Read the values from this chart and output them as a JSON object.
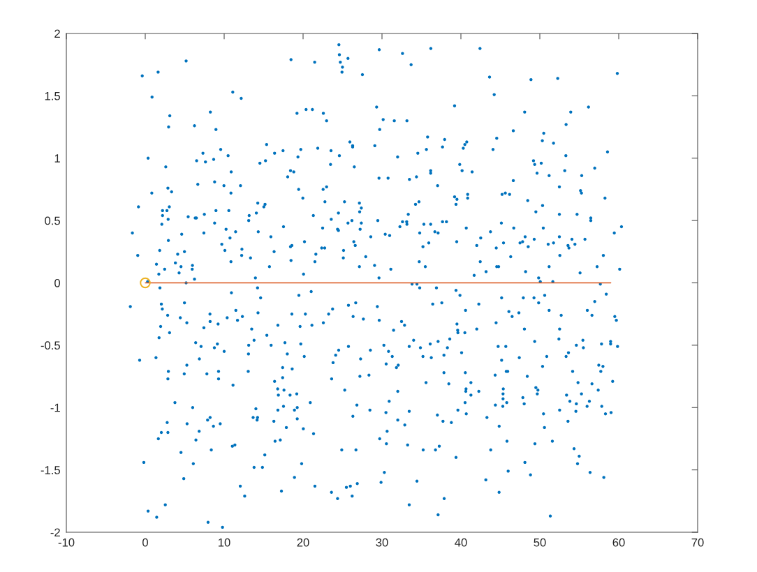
{
  "chart_data": {
    "type": "scatter",
    "xlim": [
      -10,
      70
    ],
    "ylim": [
      -2,
      2
    ],
    "xticks": [
      -10,
      0,
      10,
      20,
      30,
      40,
      50,
      60,
      70
    ],
    "yticks": [
      -2,
      -1.5,
      -1,
      -0.5,
      0,
      0.5,
      1,
      1.5,
      2
    ],
    "series": [
      {
        "color": "#0072bd",
        "x": [
          5.18,
          -0.38,
          1.63,
          0.86,
          11.09,
          12.16,
          3.11,
          2.96,
          6.24,
          8.25,
          8.96,
          15.38,
          16.39,
          9.56,
          10.5,
          7.31,
          6.51,
          7.63,
          8.67,
          0.36,
          2.6,
          14.53,
          15.24,
          10.89,
          6.66,
          8.79,
          9.97,
          12.07,
          10.86,
          2.87,
          3.34,
          0.83,
          -0.86,
          2.19,
          2.75,
          3.05,
          2.19,
          2.9,
          2.1,
          5.44,
          6.33,
          6.48,
          7.49,
          8.96,
          10.59,
          8.79,
          10.24,
          11.45,
          10.74,
          14.26,
          15.18,
          15.03,
          13.17,
          14.08,
          13.11,
          14.32,
          15.92,
          -1.63,
          4.62,
          7.43,
          2.93,
          9.7,
          10.09,
          12.25,
          12.22,
          13.34,
          16.33,
          1.83,
          -0.95,
          4.11,
          4.97,
          1.42,
          2.46,
          3.82,
          4.53,
          5.98,
          5.95,
          1.72,
          4.29,
          10.86,
          15.74,
          5.18,
          6.24,
          13.96,
          0.3,
          1.86,
          -1.89,
          2.04,
          2.16,
          2.84,
          4.44,
          4.97,
          5.27,
          1.95,
          3.08,
          1.75,
          7.43,
          8.2,
          8.22,
          9.23,
          10.38,
          10.92,
          11.48,
          11.69,
          12.31,
          14.23,
          14.62,
          14.29,
          13.49,
          13.79,
          13.11,
          15.41,
          15.95,
          13.08,
          13.05,
          6.39,
          7.07,
          9.14,
          8.76,
          10.0,
          6.86,
          5.27,
          4.94,
          7.81,
          9.29,
          9.29,
          11.12,
          -0.71,
          1.36,
          2.93,
          2.87,
          16.39,
          3.76,
          6.01,
          14.02,
          13.67,
          14.23,
          14.17,
          16.3,
          7.9,
          8.22,
          8.64,
          9.5,
          2.78,
          5.3,
          2.04,
          2.87,
          1.66,
          6.83,
          6.42,
          8.37,
          11.04,
          11.36,
          16.45,
          4.53,
          15.15,
          -0.18,
          6.09,
          13.79,
          14.85,
          4.88,
          12.04,
          12.6,
          2.54,
          0.36,
          1.45,
          7.96,
          9.79,
          24.54,
          18.47,
          21.47,
          24.6,
          24.72,
          25.69,
          24.99,
          24.93,
          27.52,
          29.65,
          32.6,
          33.69,
          36.19,
          42.42,
          19.23,
          20.38,
          21.18,
          22.57,
          22.98,
          29.32,
          30.15,
          31.56,
          33.16,
          29.71,
          39.2,
          35.78,
          37.94,
          40.3,
          40.5,
          40.74,
          37.67,
          35.63,
          34.54,
          31.98,
          29.09,
          25.93,
          26.28,
          26.28,
          24.6,
          23.54,
          21.86,
          19.71,
          19.35,
          17.46,
          23.48,
          26.49,
          18.41,
          18.82,
          18.05,
          29.62,
          30.77,
          33.48,
          34.37,
          36.17,
          36.17,
          39.85,
          40.15,
          41.42,
          37.05,
          19.44,
          19.97,
          22.54,
          22.98,
          22.77,
          25.25,
          27.14,
          27.38,
          27.17,
          27.38,
          27.23,
          26.19,
          25.69,
          24.48,
          23.57,
          21.3,
          22.48,
          24.37,
          24.48,
          17.52,
          29.47,
          28.58,
          30.41,
          30.97,
          32.27,
          32.6,
          33.13,
          33.16,
          33.33,
          34.25,
          34.69,
          34.78,
          35.31,
          36.17,
          36.7,
          37.11,
          37.67,
          38.17,
          39.2,
          39.5,
          39.38,
          40.86,
          40.86,
          40.68,
          39.47,
          42.51,
          42.01,
          42.45,
          41.68,
          20.18,
          18.41,
          18.58,
          18.47,
          21.62,
          22.36,
          22.74,
          21.5,
          25.13,
          25.1,
          26.43,
          26.61,
          27.94,
          27.14,
          29.06,
          31.12,
          29.62,
          20.06,
          34.72,
          35.19,
          35.93,
          35.49,
          33.81,
          34.43,
          34.78,
          36.9,
          39.38,
          39.88,
          19.47,
          21.03,
          36.43,
          37.58,
          40.59,
          42.27,
          25.75,
          26.67,
          29.41,
          29.65,
          26.34,
          27.64,
          23.24,
          23.74,
          22.57,
          21.12,
          20.29,
          18.58,
          19.62,
          16.81,
          32.48,
          32.86,
          31.47,
          39.5,
          39.59,
          39.62,
          40.5,
          42.01,
          17.7,
          19.71,
          20.15,
          18.0,
          17.41,
          18.62,
          17.41,
          16.78,
          17.58,
          16.87,
          18.35,
          19.2,
          17.52,
          16.81,
          18.91,
          19.26,
          19.26,
          20.91,
          17.88,
          20.03,
          21.33,
          17.11,
          24.13,
          24.51,
          23.8,
          25.75,
          23.62,
          27.29,
          27.2,
          28.35,
          28.53,
          25.28,
          26.82,
          26.31,
          28.47,
          30.24,
          30.83,
          31.3,
          30.53,
          32.06,
          31.83,
          33.45,
          34.01,
          34.87,
          35.19,
          36.11,
          36.25,
          37.11,
          37.85,
          38.29,
          38.59,
          40.09,
          37.85,
          40.56,
          35.58,
          38.47,
          41.27,
          40.65,
          40.62,
          41.27,
          42.27,
          32.0,
          30.91,
          30.5,
          33.45,
          32.0,
          32.89,
          30.65,
          29.71,
          30.56,
          33.25,
          37.02,
          37.73,
          38.79,
          39.62,
          40.53,
          40.68,
          35.22,
          36.78,
          37.26,
          39.38,
          24.9,
          26.7,
          19.82,
          18.91,
          17.26,
          21.5,
          23.6,
          24.37,
          25.49,
          25.99,
          26.22,
          26.87,
          30.3,
          29.88,
          34.43,
          33.45,
          37.88,
          37.11,
          43.63,
          44.22,
          48.88,
          52.27,
          59.82,
          48.08,
          53.92,
          56.17,
          53.33,
          46.64,
          50.5,
          50.32,
          51.74,
          44.54,
          44.07,
          53.3,
          58.58,
          49.2,
          49.35,
          50.18,
          49.65,
          51.18,
          53.16,
          55.31,
          56.96,
          46.64,
          52.48,
          55.16,
          55.28,
          58.26,
          45.22,
          45.63,
          46.17,
          48.47,
          50.35,
          49.5,
          52.48,
          54.72,
          56.46,
          56.46,
          45.13,
          50.44,
          46.7,
          43.75,
          60.35,
          59.44,
          48.14,
          49.29,
          52.48,
          54.07,
          55.72,
          45.4,
          47.49,
          47.82,
          48.53,
          51.06,
          51.74,
          53.57,
          53.69,
          54.45,
          44.48,
          52.54,
          58.05,
          46.31,
          44.54,
          44.78,
          43.19,
          48.2,
          51.18,
          55.1,
          57.26,
          60.12,
          49.85,
          50.06,
          51.65,
          57.67,
          45.16,
          47.91,
          49.26,
          50.62,
          49.85,
          46.08,
          46.49,
          47.35,
          51.18,
          52.71,
          58.42,
          56.96,
          56.02,
          56.61,
          59.5,
          59.7,
          44.46,
          48.05,
          52.51,
          52.42,
          49.35,
          44.72,
          45.69,
          55.46,
          54.63,
          55.52,
          57.82,
          58.97,
          58.97,
          59.85,
          47.4,
          50.88,
          53.33,
          53.63,
          45.16,
          50.35,
          57.47,
          58.0,
          57.73,
          54.16,
          44.34,
          45.75,
          45.93,
          48.41,
          54.84,
          56.61,
          59.23,
          57.4,
          45.37,
          45.34,
          45.34,
          45.81,
          44.37,
          45.31,
          47.85,
          48.02,
          49.5,
          49.76,
          49.68,
          53.39,
          55.28,
          53.81,
          54.63,
          56.28,
          55.99,
          57.85,
          52.51,
          54.57,
          58.32,
          59.03,
          50.47,
          50.59,
          53.57,
          43.3,
          44.85,
          45.84,
          49.38,
          51.59,
          54.34,
          54.99,
          54.78,
          43.78,
          48.11,
          45.99,
          48.82,
          56.37,
          58.11,
          43.16,
          44.84,
          51.33
        ],
        "values": [
          1.78,
          1.66,
          1.69,
          1.49,
          1.53,
          1.48,
          1.34,
          1.25,
          1.26,
          1.37,
          1.23,
          1.11,
          1.04,
          1.07,
          1.02,
          1.04,
          0.98,
          0.97,
          0.99,
          1.0,
          0.93,
          0.96,
          0.98,
          0.89,
          0.79,
          0.81,
          0.78,
          0.78,
          0.72,
          0.76,
          0.73,
          0.72,
          0.61,
          0.58,
          0.58,
          0.61,
          0.54,
          0.51,
          0.47,
          0.53,
          0.52,
          0.52,
          0.55,
          0.58,
          0.58,
          0.48,
          0.43,
          0.41,
          0.36,
          0.64,
          0.63,
          0.61,
          0.54,
          0.56,
          0.5,
          0.41,
          0.37,
          0.4,
          0.39,
          0.4,
          0.34,
          0.31,
          0.26,
          0.27,
          0.22,
          0.2,
          0.25,
          0.26,
          0.22,
          0.23,
          0.25,
          0.15,
          0.11,
          0.16,
          0.13,
          0.14,
          0.11,
          0.07,
          0.08,
          0.17,
          0.13,
          0.0,
          0.03,
          0.04,
          0.01,
          -0.04,
          -0.19,
          -0.17,
          -0.21,
          -0.26,
          -0.28,
          -0.16,
          -0.32,
          -0.35,
          -0.4,
          -0.44,
          -0.36,
          -0.25,
          -0.31,
          -0.33,
          -0.28,
          -0.08,
          -0.22,
          -0.3,
          -0.27,
          -0.04,
          -0.12,
          -0.24,
          -0.37,
          -0.46,
          -0.5,
          -0.42,
          -0.5,
          -0.57,
          -0.71,
          -0.48,
          -0.51,
          -0.49,
          -0.52,
          -0.55,
          -0.61,
          -0.66,
          -0.73,
          -0.73,
          -0.71,
          -0.77,
          -0.82,
          -0.62,
          -0.6,
          -0.71,
          -0.77,
          -0.79,
          -0.96,
          -1.0,
          -1.01,
          -1.08,
          -1.08,
          -1.1,
          -1.11,
          -1.1,
          -1.08,
          -1.15,
          -1.13,
          -1.12,
          -1.13,
          -1.2,
          -1.2,
          -1.25,
          -1.19,
          -1.26,
          -1.34,
          -1.31,
          -1.3,
          -1.27,
          -1.36,
          -1.38,
          -1.44,
          -1.45,
          -1.48,
          -1.48,
          -1.57,
          -1.63,
          -1.71,
          -1.78,
          -1.83,
          -1.88,
          -1.92,
          -1.96,
          1.91,
          1.79,
          1.77,
          1.83,
          1.77,
          1.8,
          1.73,
          1.69,
          1.67,
          1.87,
          1.84,
          1.75,
          1.88,
          1.88,
          1.36,
          1.39,
          1.39,
          1.36,
          1.3,
          1.41,
          1.31,
          1.3,
          1.3,
          1.23,
          1.42,
          1.17,
          1.15,
          1.08,
          1.11,
          1.13,
          1.09,
          1.07,
          1.04,
          1.01,
          1.1,
          1.13,
          1.1,
          1.09,
          1.02,
          1.06,
          1.08,
          1.07,
          1.01,
          1.06,
          0.95,
          0.93,
          0.9,
          0.89,
          0.85,
          0.84,
          0.84,
          0.83,
          0.85,
          0.9,
          0.88,
          0.95,
          0.9,
          0.89,
          0.78,
          0.75,
          0.68,
          0.75,
          0.77,
          0.65,
          0.65,
          0.64,
          0.6,
          0.57,
          0.48,
          0.43,
          0.5,
          0.48,
          0.56,
          0.51,
          0.54,
          0.44,
          0.43,
          0.42,
          0.45,
          0.5,
          0.37,
          0.39,
          0.38,
          0.45,
          0.49,
          0.49,
          0.47,
          0.55,
          0.63,
          0.65,
          0.4,
          0.47,
          0.47,
          0.41,
          0.4,
          0.49,
          0.49,
          0.69,
          0.67,
          0.63,
          0.71,
          0.68,
          0.44,
          0.33,
          0.36,
          0.3,
          0.17,
          0.06,
          0.33,
          0.29,
          0.3,
          0.18,
          0.23,
          0.28,
          0.28,
          0.17,
          0.26,
          0.2,
          0.33,
          0.3,
          0.21,
          0.13,
          0.14,
          0.11,
          0.04,
          0.07,
          0.17,
          0.29,
          0.32,
          0.13,
          -0.01,
          -0.01,
          -0.04,
          -0.04,
          -0.06,
          -0.1,
          -0.1,
          -0.07,
          -0.17,
          -0.16,
          -0.22,
          -0.17,
          -0.18,
          -0.16,
          -0.19,
          -0.3,
          -0.27,
          -0.29,
          -0.25,
          -0.21,
          -0.32,
          -0.34,
          -0.25,
          -0.25,
          -0.35,
          -0.34,
          -0.31,
          -0.34,
          -0.38,
          -0.33,
          -0.38,
          -0.4,
          -0.4,
          -0.37,
          -0.48,
          -0.49,
          -0.59,
          -0.57,
          -0.68,
          -0.69,
          -0.76,
          -0.85,
          -0.86,
          -0.9,
          -0.9,
          -0.89,
          -0.99,
          -1.02,
          -1.02,
          -1.0,
          -1.09,
          -0.96,
          -1.16,
          -1.17,
          -1.21,
          -1.26,
          -0.58,
          -0.54,
          -0.64,
          -0.51,
          -0.77,
          -0.61,
          -0.75,
          -0.74,
          -0.54,
          -0.86,
          -0.98,
          -1.07,
          -1.02,
          -0.5,
          -0.55,
          -0.59,
          -0.65,
          -0.66,
          -0.68,
          -0.51,
          -0.46,
          -0.52,
          -0.59,
          -0.49,
          -0.6,
          -0.47,
          -0.58,
          -0.52,
          -0.45,
          -0.56,
          -0.72,
          -0.72,
          -0.8,
          -0.81,
          -0.8,
          -0.85,
          -0.87,
          -0.9,
          -0.87,
          -0.87,
          -0.95,
          -1.04,
          -1.03,
          -1.1,
          -1.14,
          -1.19,
          -1.25,
          -1.29,
          -1.3,
          -1.06,
          -1.11,
          -1.12,
          -1.02,
          -0.96,
          -1.05,
          -1.34,
          -1.34,
          -1.31,
          -1.4,
          -1.34,
          -1.34,
          -1.45,
          -1.56,
          -1.67,
          -1.63,
          -1.68,
          -1.73,
          -1.64,
          -1.63,
          -1.71,
          -1.61,
          -1.52,
          -1.6,
          -1.59,
          -1.78,
          -1.73,
          -1.86,
          1.65,
          1.51,
          1.63,
          1.64,
          1.68,
          1.37,
          1.37,
          1.41,
          1.27,
          1.22,
          1.2,
          1.14,
          1.12,
          1.16,
          1.07,
          1.02,
          1.05,
          0.98,
          0.95,
          0.96,
          0.88,
          0.86,
          0.9,
          0.86,
          0.92,
          0.82,
          0.77,
          0.74,
          0.72,
          0.68,
          0.71,
          0.72,
          0.71,
          0.66,
          0.62,
          0.57,
          0.55,
          0.55,
          0.52,
          0.5,
          0.48,
          0.44,
          0.44,
          0.41,
          0.45,
          0.4,
          0.37,
          0.35,
          0.37,
          0.35,
          0.35,
          0.32,
          0.32,
          0.33,
          0.29,
          0.31,
          0.32,
          0.3,
          0.28,
          0.31,
          0.28,
          0.22,
          0.22,
          0.21,
          0.13,
          0.13,
          0.09,
          0.09,
          0.13,
          0.08,
          0.13,
          0.11,
          0.04,
          0.01,
          0.01,
          -0.01,
          -0.12,
          -0.12,
          -0.12,
          -0.1,
          -0.16,
          -0.23,
          -0.27,
          -0.24,
          -0.22,
          -0.26,
          -0.09,
          -0.15,
          -0.22,
          -0.26,
          -0.27,
          -0.3,
          -0.32,
          -0.37,
          -0.37,
          -0.45,
          -0.47,
          -0.51,
          -0.51,
          -0.46,
          -0.5,
          -0.52,
          -0.49,
          -0.47,
          -0.49,
          -0.51,
          -0.6,
          -0.59,
          -0.59,
          -0.56,
          -0.62,
          -0.67,
          -0.66,
          -0.67,
          -0.71,
          -0.71,
          -0.74,
          -0.71,
          -0.71,
          -0.75,
          -0.8,
          -0.81,
          -0.79,
          -0.86,
          -0.85,
          -0.89,
          -0.93,
          -0.96,
          -0.98,
          -0.99,
          -0.92,
          -0.97,
          -0.84,
          -0.86,
          -0.89,
          -0.9,
          -0.89,
          -0.95,
          -0.97,
          -0.95,
          -0.99,
          -0.99,
          -1.02,
          -1.03,
          -1.05,
          -1.04,
          -1.05,
          -1.16,
          -1.11,
          -1.08,
          -1.15,
          -1.27,
          -1.29,
          -1.27,
          -1.33,
          -1.39,
          -1.45,
          -1.34,
          -1.44,
          -1.51,
          -1.54,
          -1.52,
          -1.56,
          -1.58,
          -1.68,
          -1.87
        ]
      },
      {
        "type": "line",
        "color": "#d95319",
        "x": [
          0,
          59
        ],
        "values": [
          0,
          0
        ],
        "line_style": "solid"
      },
      {
        "color": "#edb120",
        "x": [
          0
        ],
        "values": [
          0
        ],
        "marker": "circle"
      }
    ]
  }
}
